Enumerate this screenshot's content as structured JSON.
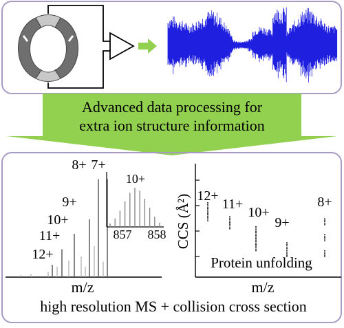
{
  "colors": {
    "panel_border": "#a99ac4",
    "arrow_green": "#92d050",
    "signal_blue": "#1f1fe0",
    "spectrum_gray": "#777777",
    "ring_gray": "#6f6f6f"
  },
  "banner": {
    "line1": "Advanced data processing for",
    "line2": "extra ion structure information"
  },
  "ms_panel": {
    "xlabel": "m/z",
    "inset_ticks": [
      "857",
      "858"
    ],
    "inset_label": "10+"
  },
  "ccs_panel": {
    "ylabel": "CCS (Å²)",
    "xlabel": "m/z",
    "annotation": "Protein unfolding"
  },
  "caption": "high resolution MS + collision cross section",
  "chart_data": [
    {
      "type": "bar",
      "categories": [
        "12+",
        "11+",
        "10+",
        "9+",
        "8+",
        "7+"
      ],
      "values": [
        0.12,
        0.27,
        0.42,
        0.56,
        0.95,
        0.95
      ],
      "ylim": [
        0,
        1
      ]
    },
    {
      "type": "bar",
      "x": [
        857.0,
        857.1,
        857.2,
        857.3,
        857.4,
        857.5,
        857.6,
        857.7,
        857.8,
        857.9,
        858.0
      ],
      "values": [
        0.08,
        0.2,
        0.38,
        0.6,
        0.8,
        0.92,
        0.85,
        0.66,
        0.45,
        0.24,
        0.1
      ],
      "inset_label": "10+"
    },
    {
      "type": "scatter",
      "categories": [
        "12+",
        "11+",
        "10+",
        "9+",
        "8+"
      ],
      "values": [
        [
          0.66,
          0.6,
          0.54
        ],
        [
          0.52,
          0.46
        ],
        [
          0.42,
          0.36,
          0.3,
          0.24
        ],
        [
          0.26,
          0.18
        ],
        [
          0.5,
          0.34,
          0.18
        ]
      ]
    }
  ]
}
